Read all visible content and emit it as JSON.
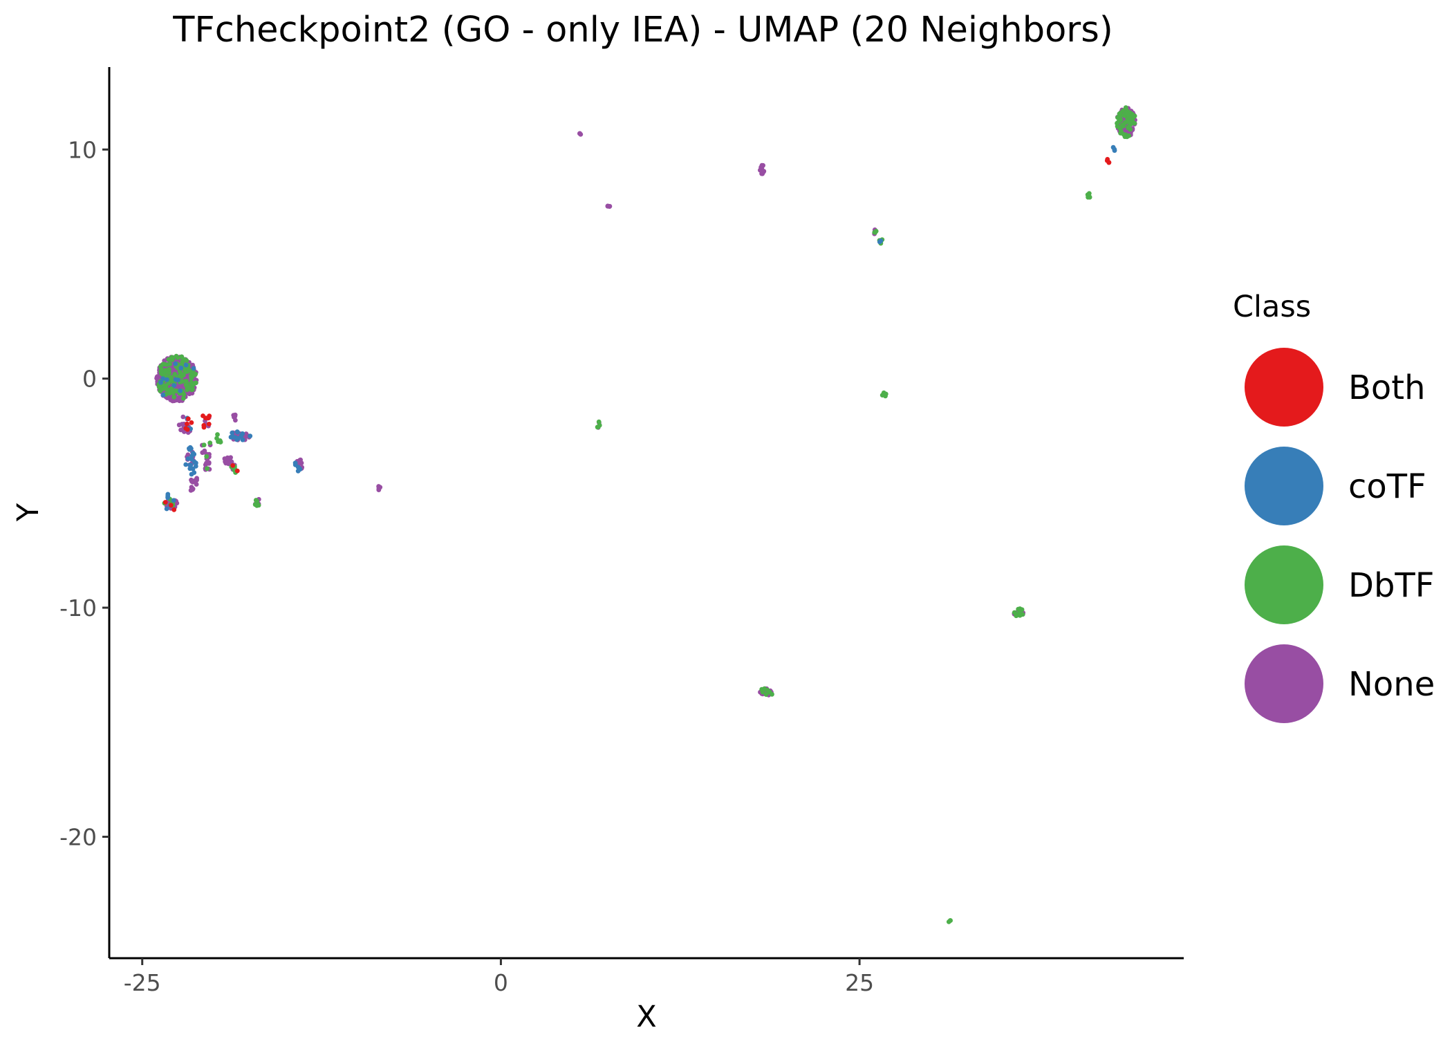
{
  "chart_data": {
    "type": "scatter",
    "title": "TFcheckpoint2 (GO - only IEA) - UMAP (20 Neighbors)",
    "xlabel": "X",
    "ylabel": "Y",
    "xlim": [
      -27.3,
      47.6
    ],
    "ylim": [
      -25.3,
      13.6
    ],
    "xticks": [
      -25,
      0,
      25
    ],
    "yticks": [
      -20,
      -10,
      0,
      10
    ],
    "xtick_labels": [
      "-25",
      "0",
      "25"
    ],
    "ytick_labels": [
      "-20",
      "-10",
      "0",
      "10"
    ],
    "grid": false,
    "legend": {
      "title": "Class",
      "position": "right",
      "entries": [
        {
          "label": "Both",
          "color": "#E41A1C"
        },
        {
          "label": "coTF",
          "color": "#377EB8"
        },
        {
          "label": "DbTF",
          "color": "#4DAF4A"
        },
        {
          "label": "None",
          "color": "#984EA3"
        }
      ]
    },
    "clusters": [
      {
        "x": -22.6,
        "y": 0.0,
        "rx": 1.4,
        "ry": 1.0,
        "n": 600,
        "mix": {
          "None": 0.78,
          "DbTF": 0.2,
          "coTF": 0.02
        }
      },
      {
        "x": -22.0,
        "y": -2.0,
        "rx": 0.5,
        "ry": 0.4,
        "n": 20,
        "mix": {
          "None": 0.6,
          "Both": 0.25,
          "coTF": 0.15
        }
      },
      {
        "x": -20.6,
        "y": -1.8,
        "rx": 0.3,
        "ry": 0.5,
        "n": 14,
        "mix": {
          "Both": 0.5,
          "None": 0.5
        }
      },
      {
        "x": -21.6,
        "y": -3.6,
        "rx": 0.4,
        "ry": 0.6,
        "n": 28,
        "mix": {
          "coTF": 0.7,
          "None": 0.3
        }
      },
      {
        "x": -21.4,
        "y": -4.6,
        "rx": 0.3,
        "ry": 0.4,
        "n": 12,
        "mix": {
          "None": 1.0
        }
      },
      {
        "x": -20.5,
        "y": -3.3,
        "rx": 0.4,
        "ry": 0.8,
        "n": 22,
        "mix": {
          "None": 0.8,
          "DbTF": 0.2
        }
      },
      {
        "x": -19.6,
        "y": -2.6,
        "rx": 0.3,
        "ry": 0.2,
        "n": 6,
        "mix": {
          "DbTF": 1.0
        }
      },
      {
        "x": -18.2,
        "y": -2.5,
        "rx": 0.8,
        "ry": 0.2,
        "n": 36,
        "mix": {
          "None": 0.6,
          "coTF": 0.4
        }
      },
      {
        "x": -18.5,
        "y": -1.7,
        "rx": 0.2,
        "ry": 0.15,
        "n": 5,
        "mix": {
          "None": 1.0
        }
      },
      {
        "x": -19.0,
        "y": -3.6,
        "rx": 0.4,
        "ry": 0.2,
        "n": 12,
        "mix": {
          "None": 1.0
        }
      },
      {
        "x": -18.6,
        "y": -4.0,
        "rx": 0.25,
        "ry": 0.25,
        "n": 10,
        "mix": {
          "DbTF": 0.6,
          "Both": 0.2,
          "None": 0.2
        }
      },
      {
        "x": -23.0,
        "y": -5.5,
        "rx": 0.5,
        "ry": 0.25,
        "n": 30,
        "mix": {
          "None": 0.6,
          "DbTF": 0.2,
          "coTF": 0.1,
          "Both": 0.1
        }
      },
      {
        "x": -23.2,
        "y": -5.1,
        "rx": 0.1,
        "ry": 0.1,
        "n": 3,
        "mix": {
          "coTF": 1.0
        }
      },
      {
        "x": -17.0,
        "y": -5.4,
        "rx": 0.25,
        "ry": 0.15,
        "n": 10,
        "mix": {
          "DbTF": 0.7,
          "None": 0.3
        }
      },
      {
        "x": -14.1,
        "y": -3.8,
        "rx": 0.25,
        "ry": 0.35,
        "n": 18,
        "mix": {
          "None": 0.6,
          "coTF": 0.4
        }
      },
      {
        "x": -8.5,
        "y": -4.8,
        "rx": 0.15,
        "ry": 0.1,
        "n": 5,
        "mix": {
          "None": 1.0
        }
      },
      {
        "x": 5.5,
        "y": 10.7,
        "rx": 0.08,
        "ry": 0.08,
        "n": 3,
        "mix": {
          "None": 1.0
        }
      },
      {
        "x": 7.5,
        "y": 7.5,
        "rx": 0.1,
        "ry": 0.1,
        "n": 4,
        "mix": {
          "None": 1.0
        }
      },
      {
        "x": 6.8,
        "y": -2.0,
        "rx": 0.12,
        "ry": 0.15,
        "n": 6,
        "mix": {
          "DbTF": 0.6,
          "None": 0.4
        }
      },
      {
        "x": 18.2,
        "y": 9.1,
        "rx": 0.15,
        "ry": 0.3,
        "n": 12,
        "mix": {
          "None": 1.0
        }
      },
      {
        "x": 26.1,
        "y": 6.4,
        "rx": 0.15,
        "ry": 0.1,
        "n": 5,
        "mix": {
          "DbTF": 0.5,
          "None": 0.5
        }
      },
      {
        "x": 26.5,
        "y": 6.0,
        "rx": 0.12,
        "ry": 0.1,
        "n": 6,
        "mix": {
          "coTF": 0.4,
          "DbTF": 0.6
        }
      },
      {
        "x": 26.7,
        "y": -0.7,
        "rx": 0.15,
        "ry": 0.1,
        "n": 6,
        "mix": {
          "DbTF": 1.0
        }
      },
      {
        "x": 18.5,
        "y": -13.7,
        "rx": 0.45,
        "ry": 0.2,
        "n": 24,
        "mix": {
          "None": 0.7,
          "DbTF": 0.3
        }
      },
      {
        "x": 36.1,
        "y": -10.2,
        "rx": 0.35,
        "ry": 0.2,
        "n": 18,
        "mix": {
          "DbTF": 0.5,
          "None": 0.5
        }
      },
      {
        "x": 31.3,
        "y": -23.7,
        "rx": 0.1,
        "ry": 0.1,
        "n": 3,
        "mix": {
          "DbTF": 1.0
        }
      },
      {
        "x": 41.0,
        "y": 8.0,
        "rx": 0.12,
        "ry": 0.12,
        "n": 5,
        "mix": {
          "DbTF": 1.0
        }
      },
      {
        "x": 42.3,
        "y": 9.5,
        "rx": 0.12,
        "ry": 0.12,
        "n": 4,
        "mix": {
          "Both": 1.0
        }
      },
      {
        "x": 42.7,
        "y": 10.0,
        "rx": 0.1,
        "ry": 0.1,
        "n": 3,
        "mix": {
          "coTF": 1.0
        }
      },
      {
        "x": 43.6,
        "y": 11.2,
        "rx": 0.65,
        "ry": 0.65,
        "n": 150,
        "mix": {
          "None": 0.65,
          "DbTF": 0.35
        }
      }
    ]
  }
}
